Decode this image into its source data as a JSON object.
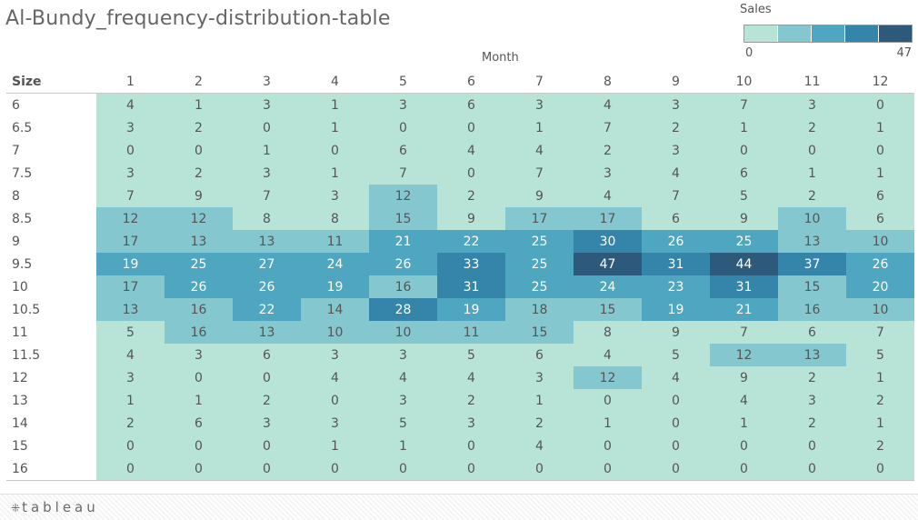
{
  "title": "Al-Bundy_frequency-distribution-table",
  "legend": {
    "title": "Sales",
    "min": "0",
    "max": "47",
    "colors": [
      "#b8e4d8",
      "#84c7cf",
      "#4fa6c1",
      "#3585aa",
      "#2d5a7b"
    ]
  },
  "footer": {
    "logo_text": "tableau",
    "logo_mark": "⁜"
  },
  "chart_data": {
    "type": "heatmap",
    "title": "Al-Bundy_frequency-distribution-table",
    "column_header": "Month",
    "row_header": "Size",
    "columns": [
      "1",
      "2",
      "3",
      "4",
      "5",
      "6",
      "7",
      "8",
      "9",
      "10",
      "11",
      "12"
    ],
    "rows": [
      "6",
      "6.5",
      "7",
      "7.5",
      "8",
      "8.5",
      "9",
      "9.5",
      "10",
      "10.5",
      "11",
      "11.5",
      "12",
      "13",
      "14",
      "15",
      "16"
    ],
    "values": [
      [
        4,
        1,
        3,
        1,
        3,
        6,
        3,
        4,
        3,
        7,
        3,
        0
      ],
      [
        3,
        2,
        0,
        1,
        0,
        0,
        1,
        7,
        2,
        1,
        2,
        1
      ],
      [
        0,
        0,
        1,
        0,
        6,
        4,
        4,
        2,
        3,
        0,
        0,
        0
      ],
      [
        3,
        2,
        3,
        1,
        7,
        0,
        7,
        3,
        4,
        6,
        1,
        1
      ],
      [
        7,
        9,
        7,
        3,
        12,
        2,
        9,
        4,
        7,
        5,
        2,
        6
      ],
      [
        12,
        12,
        8,
        8,
        15,
        9,
        17,
        17,
        6,
        9,
        10,
        6
      ],
      [
        17,
        13,
        13,
        11,
        21,
        22,
        25,
        30,
        26,
        25,
        13,
        10
      ],
      [
        19,
        25,
        27,
        24,
        26,
        33,
        25,
        47,
        31,
        44,
        37,
        26
      ],
      [
        17,
        26,
        26,
        19,
        16,
        31,
        25,
        24,
        23,
        31,
        15,
        20
      ],
      [
        13,
        16,
        22,
        14,
        28,
        19,
        18,
        15,
        19,
        21,
        16,
        10
      ],
      [
        5,
        16,
        13,
        10,
        10,
        11,
        15,
        8,
        9,
        7,
        6,
        7
      ],
      [
        4,
        3,
        6,
        3,
        3,
        5,
        6,
        4,
        5,
        12,
        13,
        5
      ],
      [
        3,
        0,
        0,
        4,
        4,
        4,
        3,
        12,
        4,
        9,
        2,
        1
      ],
      [
        1,
        1,
        2,
        0,
        3,
        2,
        1,
        0,
        0,
        4,
        3,
        2
      ],
      [
        2,
        6,
        3,
        3,
        5,
        3,
        2,
        1,
        0,
        1,
        2,
        1
      ],
      [
        0,
        0,
        0,
        1,
        1,
        0,
        4,
        0,
        0,
        0,
        0,
        2
      ],
      [
        0,
        0,
        0,
        0,
        0,
        0,
        0,
        0,
        0,
        0,
        0,
        0
      ]
    ],
    "color_scale": {
      "min": 0,
      "max": 47,
      "thresholds": [
        10,
        19,
        28,
        38
      ],
      "colors": [
        "#b8e4d8",
        "#84c7cf",
        "#4fa6c1",
        "#3585aa",
        "#2d5a7b"
      ],
      "text_light": "#ffffff",
      "text_dark": "#555555"
    }
  }
}
